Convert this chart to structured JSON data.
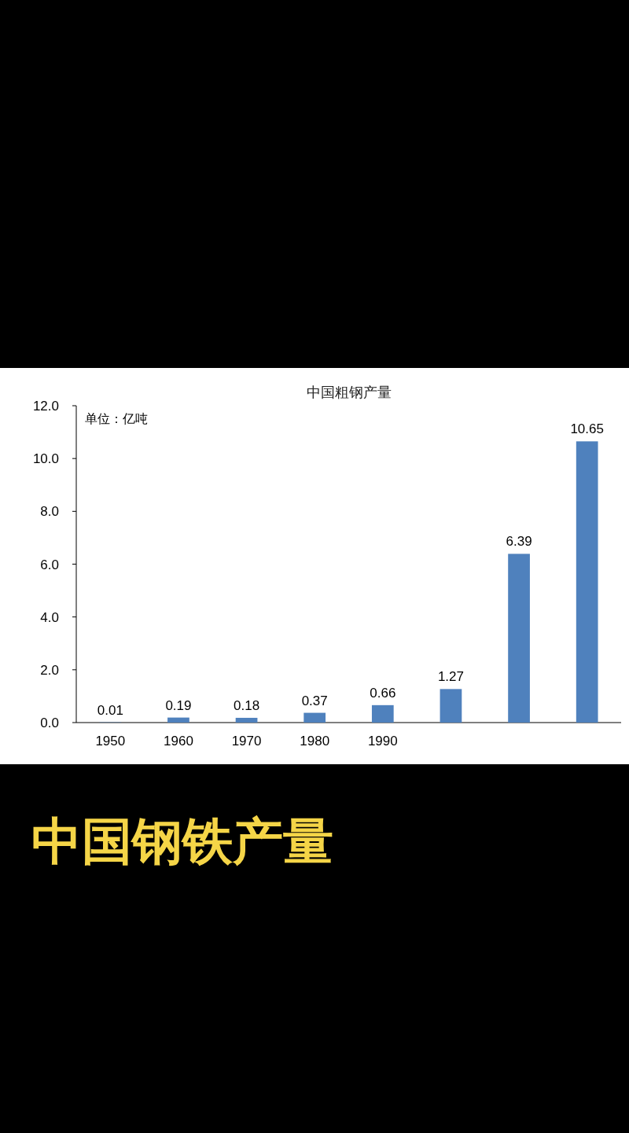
{
  "chart_data": {
    "type": "bar",
    "title": "中国粗钢产量",
    "categories": [
      "1950",
      "1960",
      "1970",
      "1980",
      "1990",
      null,
      null,
      null
    ],
    "values": [
      0.01,
      0.19,
      0.18,
      0.37,
      0.66,
      1.27,
      6.39,
      10.65
    ],
    "color": "#4f81bd",
    "ylim": [
      0,
      12
    ],
    "yticks": [
      {
        "value": 0,
        "label": "0.0"
      },
      {
        "value": 2,
        "label": "2.0"
      },
      {
        "value": 4,
        "label": "4.0"
      },
      {
        "value": 6,
        "label": "6.0"
      },
      {
        "value": 8,
        "label": "8.0"
      },
      {
        "value": 10,
        "label": "10.0"
      },
      {
        "value": 12,
        "label": "12.0"
      }
    ],
    "grid": false,
    "data_labels": true,
    "annotations": [
      "单位：亿吨",
      "中国钢铁产量"
    ]
  }
}
